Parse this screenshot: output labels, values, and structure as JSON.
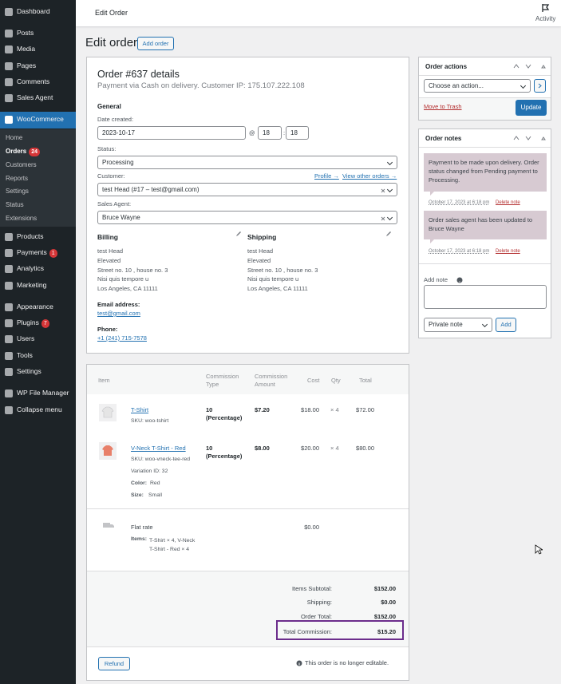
{
  "sidebar": {
    "menu": [
      {
        "label": "Dashboard"
      },
      {
        "label": "Posts"
      },
      {
        "label": "Media"
      },
      {
        "label": "Pages"
      },
      {
        "label": "Comments"
      },
      {
        "label": "Sales Agent"
      },
      {
        "label": "WooCommerce"
      },
      {
        "label": "Products"
      },
      {
        "label": "Payments",
        "badge": 1
      },
      {
        "label": "Analytics"
      },
      {
        "label": "Marketing"
      },
      {
        "label": "Appearance"
      },
      {
        "label": "Plugins",
        "badge": 7
      },
      {
        "label": "Users"
      },
      {
        "label": "Tools"
      },
      {
        "label": "Settings"
      },
      {
        "label": "WP File Manager"
      },
      {
        "label": "Collapse menu"
      }
    ],
    "woocommerce_submenu": [
      {
        "label": "Home"
      },
      {
        "label": "Orders",
        "badge": 24
      },
      {
        "label": "Customers"
      },
      {
        "label": "Reports"
      },
      {
        "label": "Settings"
      },
      {
        "label": "Status"
      },
      {
        "label": "Extensions"
      }
    ]
  },
  "topbar": {
    "title": "Edit Order",
    "activity": "Activity"
  },
  "heading": {
    "title": "Edit order",
    "add_button": "Add order"
  },
  "order": {
    "title": "Order #637 details",
    "subtitle": "Payment via Cash on delivery. Customer IP: 175.107.222.108",
    "general": "General",
    "date_label": "Date created:",
    "date": "2023-10-17",
    "at": "@",
    "hour": "18",
    "colon": ":",
    "minute": "18",
    "status_label": "Status:",
    "status": "Processing",
    "customer_label": "Customer:",
    "profile_link": "Profile →",
    "other_orders_link": "View other orders →",
    "customer": "test Head (#17 – test@gmail.com)",
    "agent_label": "Sales Agent:",
    "agent": "Bruce Wayne",
    "billing": {
      "heading": "Billing",
      "lines": [
        "test Head",
        "Elevated",
        "Street no. 10 , house no. 3",
        "Nisi quis tempore u",
        "Los Angeles, CA 11111"
      ],
      "email_label": "Email address:",
      "email": "test@gmail.com",
      "phone_label": "Phone:",
      "phone": "+1 (241) 715-7578"
    },
    "shipping": {
      "heading": "Shipping",
      "lines": [
        "test Head",
        "Elevated",
        "Street no. 10 , house no. 3",
        "Nisi quis tempore u",
        "Los Angeles, CA 11111"
      ]
    }
  },
  "items": {
    "headers": [
      "Item",
      "Commission Type",
      "Commission Amount",
      "Cost",
      "Qty",
      "Total"
    ],
    "rows": [
      {
        "name": "T-Shirt",
        "sku": "SKU: woo-tshirt",
        "commission_value": "10",
        "commission_type": "(Percentage)",
        "commission_amount": "$7.20",
        "cost": "$18.00",
        "qty": "× 4",
        "total": "$72.00"
      },
      {
        "name": "V-Neck T-Shirt - Red",
        "sku": "SKU: woo-vneck-tee-red",
        "variation": "Variation ID: 32",
        "color_label": "Color:",
        "color": "Red",
        "size_label": "Size:",
        "size": "Small",
        "commission_value": "10",
        "commission_type": "(Percentage)",
        "commission_amount": "$8.00",
        "cost": "$20.00",
        "qty": "× 4",
        "total": "$80.00"
      }
    ],
    "shipping": {
      "name": "Flat rate",
      "items_label": "Items:",
      "items": "T-Shirt × 4, V-Neck T-Shirt - Red × 4",
      "cost": "$0.00"
    },
    "totals": [
      {
        "label": "Items Subtotal:",
        "value": "$152.00"
      },
      {
        "label": "Shipping:",
        "value": "$0.00"
      },
      {
        "label": "Order Total:",
        "value": "$152.00"
      },
      {
        "label": "Total Commission:",
        "value": "$15.20"
      }
    ],
    "refund": "Refund",
    "not_editable": "This order is no longer editable."
  },
  "order_actions": {
    "title": "Order actions",
    "select": "Choose an action...",
    "trash": "Move to Trash",
    "update": "Update"
  },
  "order_notes": {
    "title": "Order notes",
    "notes": [
      {
        "text": "Payment to be made upon delivery. Order status changed from Pending payment to Processing.",
        "date": "October 17, 2023 at 6:18 pm",
        "delete": "Delete note"
      },
      {
        "text": "Order sales agent has been updated to Bruce Wayne",
        "date": "October 17, 2023 at 6:18 pm",
        "delete": "Delete note"
      }
    ],
    "add_note_label": "Add note",
    "note_type": "Private note",
    "add_button": "Add"
  }
}
